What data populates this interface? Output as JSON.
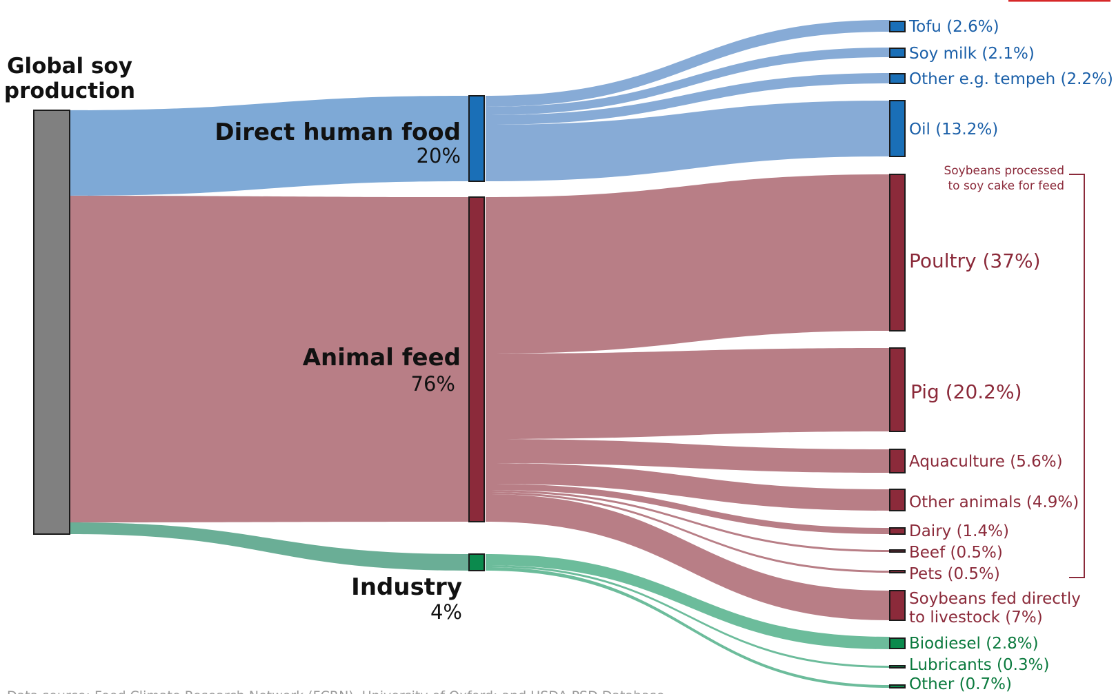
{
  "source": {
    "title_line1": "Global soy",
    "title_line2": "production"
  },
  "categories": {
    "food": {
      "name": "Direct human food",
      "pct": "20%"
    },
    "feed": {
      "name": "Animal feed",
      "pct": "76%"
    },
    "industry": {
      "name": "Industry",
      "pct": "4%"
    }
  },
  "leaves": {
    "tofu": "Tofu (2.6%)",
    "soy_milk": "Soy milk (2.1%)",
    "other_food": "Other e.g. tempeh (2.2%)",
    "oil": "Oil (13.2%)",
    "poultry": "Poultry (37%)",
    "pig": "Pig (20.2%)",
    "aquaculture": "Aquaculture (5.6%)",
    "other_animals": "Other animals (4.9%)",
    "dairy": "Dairy (1.4%)",
    "beef": "Beef (0.5%)",
    "pets": "Pets (0.5%)",
    "fed_directly_line1": "Soybeans fed directly",
    "fed_directly_line2": "to livestock (7%)",
    "biodiesel": "Biodiesel (2.8%)",
    "lubricants": "Lubricants (0.3%)",
    "other_industry": "Other (0.7%)"
  },
  "bracket": {
    "line1": "Soybeans processed",
    "line2": "to soy cake for feed"
  },
  "footer": {
    "source_text": "Data source: Food Climate Research Network (FCRN), University of Oxford; and USDA PSD Database."
  },
  "colors": {
    "food_flow": "#87abd6",
    "food_node": "#1a6fb7",
    "food_text": "#1a5fa8",
    "feed_flow": "#b87e86",
    "feed_node": "#8b2a3a",
    "feed_text": "#8b2a3a",
    "industry_flow": "#6cbc9b",
    "industry_node": "#0b8a4d",
    "industry_text": "#0b7a3e",
    "source_node": "#808080",
    "accent_red": "#d62728"
  },
  "chart_data": {
    "type": "sankey",
    "unit": "% of global soy production",
    "nodes": [
      "Global soy production",
      "Direct human food",
      "Animal feed",
      "Industry",
      "Tofu",
      "Soy milk",
      "Other e.g. tempeh",
      "Oil",
      "Poultry",
      "Pig",
      "Aquaculture",
      "Other animals",
      "Dairy",
      "Beef",
      "Pets",
      "Soybeans fed directly to livestock",
      "Biodiesel",
      "Lubricants",
      "Other"
    ],
    "links": [
      {
        "source": "Global soy production",
        "target": "Direct human food",
        "value": 20
      },
      {
        "source": "Global soy production",
        "target": "Animal feed",
        "value": 76
      },
      {
        "source": "Global soy production",
        "target": "Industry",
        "value": 4
      },
      {
        "source": "Direct human food",
        "target": "Tofu",
        "value": 2.6
      },
      {
        "source": "Direct human food",
        "target": "Soy milk",
        "value": 2.1
      },
      {
        "source": "Direct human food",
        "target": "Other e.g. tempeh",
        "value": 2.2
      },
      {
        "source": "Direct human food",
        "target": "Oil",
        "value": 13.2
      },
      {
        "source": "Animal feed",
        "target": "Poultry",
        "value": 37
      },
      {
        "source": "Animal feed",
        "target": "Pig",
        "value": 20.2
      },
      {
        "source": "Animal feed",
        "target": "Aquaculture",
        "value": 5.6
      },
      {
        "source": "Animal feed",
        "target": "Other animals",
        "value": 4.9
      },
      {
        "source": "Animal feed",
        "target": "Dairy",
        "value": 1.4
      },
      {
        "source": "Animal feed",
        "target": "Beef",
        "value": 0.5
      },
      {
        "source": "Animal feed",
        "target": "Pets",
        "value": 0.5
      },
      {
        "source": "Animal feed",
        "target": "Soybeans fed directly to livestock",
        "value": 7
      },
      {
        "source": "Industry",
        "target": "Biodiesel",
        "value": 2.8
      },
      {
        "source": "Industry",
        "target": "Lubricants",
        "value": 0.3
      },
      {
        "source": "Industry",
        "target": "Other",
        "value": 0.7
      }
    ]
  }
}
